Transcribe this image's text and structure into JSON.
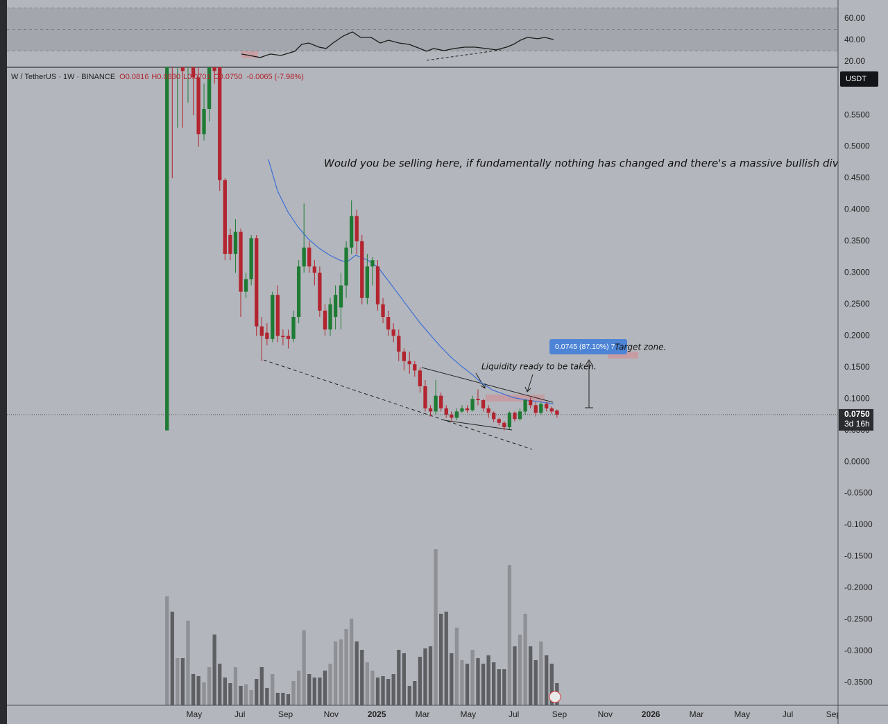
{
  "header": {
    "symbol": "W / TetherUS · 1W · BINANCE",
    "ohlc": [
      "O0.0816",
      "H0.0830",
      "L0.0701",
      "C0.0750"
    ],
    "change": "-0.0065 (-7.98%)"
  },
  "chart_data": [
    {
      "type": "line",
      "color": "#1a1a1a",
      "x": [
        6.07,
        6.43,
        6.89,
        7.34,
        7.8,
        8.1,
        8.41,
        8.71,
        9.02,
        9.47,
        9.78,
        10.08,
        10.53,
        10.93,
        11.29,
        11.75,
        12.15,
        12.51,
        12.97,
        13.42,
        13.88,
        14.18,
        14.49,
        14.94,
        15.4,
        15.85,
        16.31,
        16.77,
        17.22,
        17.68,
        17.98,
        18.29,
        18.59,
        19.05,
        19.35,
        19.74
      ],
      "values": [
        27.1,
        25.8,
        23.9,
        27.1,
        25.8,
        27.7,
        29.7,
        36.1,
        37.4,
        33.5,
        32.3,
        37.4,
        43.9,
        47.7,
        42.6,
        42.6,
        37.4,
        40,
        37.4,
        36.1,
        32.3,
        29.7,
        32.3,
        30.3,
        32.3,
        33.5,
        33.5,
        32.3,
        31,
        33.5,
        36.1,
        40,
        42.6,
        41.3,
        42.6,
        40.6
      ],
      "xlim": [
        -4.2,
        32.2
      ],
      "ylim": [
        14.8,
        77.4
      ],
      "yticks": [
        {
          "value": 60,
          "label": "60.00"
        },
        {
          "value": 40,
          "label": "40.00"
        },
        {
          "value": 20,
          "label": "20.00"
        }
      ],
      "levels": [
        30,
        50,
        70
      ]
    },
    {
      "type": "candlestick",
      "axis_unit": "USDT",
      "x": [
        2.81,
        3.04,
        3.27,
        3.5,
        3.73,
        3.96,
        4.19,
        4.43,
        4.66,
        4.89,
        5.12,
        5.35,
        5.58,
        5.81,
        6.04,
        6.27,
        6.5,
        6.73,
        6.96,
        7.19,
        7.43,
        7.66,
        7.89,
        8.12,
        8.35,
        8.58,
        8.81,
        9.04,
        9.27,
        9.5,
        9.73,
        9.96,
        10.19,
        10.43,
        10.66,
        10.89,
        11.12,
        11.35,
        11.58,
        11.81,
        12.04,
        12.27,
        12.5,
        12.73,
        12.96,
        13.19,
        13.43,
        13.66,
        13.89,
        14.12,
        14.35,
        14.58,
        14.81,
        15.04,
        15.27,
        15.5,
        15.73,
        15.96,
        16.19,
        16.43,
        16.66,
        16.89,
        17.12,
        17.35,
        17.58,
        17.81,
        18.04,
        18.27,
        18.5,
        18.73,
        18.96,
        19.19,
        19.43,
        19.66,
        19.89
      ],
      "open": [
        0.05,
        0.95,
        0.7,
        0.85,
        0.63,
        0.72,
        0.61,
        0.52,
        0.56,
        0.66,
        0.64,
        0.447,
        0.36,
        0.33,
        0.365,
        0.27,
        0.29,
        0.355,
        0.215,
        0.205,
        0.195,
        0.265,
        0.2,
        0.2,
        0.195,
        0.23,
        0.31,
        0.34,
        0.31,
        0.3,
        0.24,
        0.21,
        0.23,
        0.245,
        0.28,
        0.34,
        0.39,
        0.35,
        0.26,
        0.31,
        0.31,
        0.25,
        0.23,
        0.21,
        0.2,
        0.175,
        0.16,
        0.155,
        0.145,
        0.12,
        0.085,
        0.08,
        0.105,
        0.085,
        0.075,
        0.07,
        0.08,
        0.085,
        0.082,
        0.1,
        0.098,
        0.085,
        0.078,
        0.068,
        0.062,
        0.055,
        0.078,
        0.068,
        0.08,
        0.098,
        0.09,
        0.078,
        0.092,
        0.085,
        0.0816
      ],
      "high": [
        1.1,
        1.0,
        0.95,
        0.9,
        0.8,
        0.75,
        0.64,
        0.6,
        0.68,
        0.7,
        0.66,
        0.45,
        0.37,
        0.385,
        0.37,
        0.3,
        0.36,
        0.36,
        0.23,
        0.22,
        0.27,
        0.28,
        0.21,
        0.21,
        0.24,
        0.32,
        0.41,
        0.35,
        0.32,
        0.31,
        0.25,
        0.26,
        0.28,
        0.3,
        0.35,
        0.415,
        0.4,
        0.36,
        0.33,
        0.325,
        0.32,
        0.26,
        0.24,
        0.22,
        0.21,
        0.18,
        0.175,
        0.16,
        0.15,
        0.13,
        0.09,
        0.13,
        0.11,
        0.09,
        0.08,
        0.085,
        0.09,
        0.09,
        0.105,
        0.115,
        0.1,
        0.09,
        0.08,
        0.07,
        0.065,
        0.08,
        0.08,
        0.085,
        0.1,
        0.102,
        0.095,
        0.095,
        0.095,
        0.088,
        0.083
      ],
      "low": [
        0.05,
        0.45,
        0.53,
        0.53,
        0.57,
        0.55,
        0.5,
        0.51,
        0.54,
        0.6,
        0.43,
        0.32,
        0.32,
        0.3,
        0.23,
        0.26,
        0.28,
        0.2,
        0.16,
        0.185,
        0.19,
        0.19,
        0.185,
        0.18,
        0.19,
        0.22,
        0.3,
        0.3,
        0.28,
        0.23,
        0.2,
        0.2,
        0.21,
        0.21,
        0.26,
        0.33,
        0.33,
        0.25,
        0.25,
        0.28,
        0.24,
        0.22,
        0.2,
        0.19,
        0.16,
        0.145,
        0.14,
        0.135,
        0.11,
        0.08,
        0.072,
        0.075,
        0.08,
        0.07,
        0.064,
        0.066,
        0.078,
        0.078,
        0.08,
        0.09,
        0.08,
        0.07,
        0.063,
        0.058,
        0.05,
        0.052,
        0.064,
        0.065,
        0.075,
        0.085,
        0.072,
        0.075,
        0.08,
        0.076,
        0.0701
      ],
      "close": [
        1.0,
        0.75,
        0.85,
        0.62,
        0.72,
        0.61,
        0.52,
        0.56,
        0.63,
        0.62,
        0.447,
        0.33,
        0.33,
        0.365,
        0.27,
        0.29,
        0.355,
        0.215,
        0.2,
        0.195,
        0.265,
        0.2,
        0.198,
        0.195,
        0.23,
        0.31,
        0.34,
        0.31,
        0.3,
        0.24,
        0.21,
        0.25,
        0.265,
        0.28,
        0.34,
        0.39,
        0.35,
        0.26,
        0.31,
        0.32,
        0.25,
        0.23,
        0.21,
        0.2,
        0.175,
        0.16,
        0.155,
        0.145,
        0.12,
        0.085,
        0.08,
        0.105,
        0.085,
        0.075,
        0.07,
        0.08,
        0.085,
        0.082,
        0.1,
        0.098,
        0.085,
        0.078,
        0.068,
        0.062,
        0.055,
        0.078,
        0.068,
        0.08,
        0.098,
        0.09,
        0.078,
        0.092,
        0.085,
        0.08,
        0.075
      ],
      "volume": [
        157,
        135,
        68,
        68,
        122,
        45,
        42,
        33,
        55,
        102,
        60,
        40,
        32,
        55,
        28,
        30,
        22,
        38,
        55,
        25,
        45,
        18,
        18,
        16,
        35,
        50,
        108,
        45,
        40,
        40,
        50,
        60,
        92,
        95,
        110,
        125,
        92,
        80,
        62,
        50,
        40,
        42,
        38,
        45,
        80,
        75,
        28,
        35,
        70,
        82,
        85,
        225,
        132,
        135,
        75,
        112,
        65,
        60,
        80,
        68,
        60,
        72,
        62,
        52,
        52,
        202,
        85,
        102,
        132,
        85,
        65,
        92,
        72,
        60,
        32
      ],
      "volume_ylim": [
        0,
        400
      ],
      "up_color": "#1e7b34",
      "down_color": "#b2242f",
      "volume_up_color": "#8e9095",
      "volume_down_color": "#5e5f63",
      "moving_average": {
        "color": "#3c6fd6",
        "x": [
          7.25,
          7.65,
          8.1,
          8.56,
          9.02,
          9.47,
          9.93,
          10.38,
          10.69,
          11.08,
          11.6,
          12.05,
          12.51,
          12.97,
          13.42,
          13.88,
          14.33,
          14.79,
          15.25,
          15.7,
          16.16,
          16.61,
          17.07,
          17.53,
          17.98,
          18.59,
          19.2,
          19.74
        ],
        "values": [
          0.48,
          0.43,
          0.397,
          0.372,
          0.353,
          0.339,
          0.328,
          0.32,
          0.317,
          0.328,
          0.32,
          0.309,
          0.287,
          0.265,
          0.243,
          0.221,
          0.202,
          0.183,
          0.166,
          0.152,
          0.139,
          0.125,
          0.114,
          0.108,
          0.102,
          0.098,
          0.095,
          0.092
        ]
      },
      "xlim": [
        -4.2,
        32.2
      ],
      "xticks": [
        {
          "value": 4,
          "label": "May"
        },
        {
          "value": 6,
          "label": "Jul"
        },
        {
          "value": 8,
          "label": "Sep"
        },
        {
          "value": 10,
          "label": "Nov"
        },
        {
          "value": 12,
          "label": "2025"
        },
        {
          "value": 14,
          "label": "Mar"
        },
        {
          "value": 16,
          "label": "May"
        },
        {
          "value": 18,
          "label": "Jul"
        },
        {
          "value": 20,
          "label": "Sep"
        },
        {
          "value": 22,
          "label": "Nov"
        },
        {
          "value": 24,
          "label": "2026"
        },
        {
          "value": 26,
          "label": "Mar"
        },
        {
          "value": 28,
          "label": "May"
        },
        {
          "value": 30,
          "label": "Jul"
        },
        {
          "value": 32,
          "label": "Sep"
        }
      ],
      "ylim": [
        -0.386,
        0.626
      ],
      "yticks": [
        {
          "value": 0.55,
          "label": "0.5500"
        },
        {
          "value": 0.5,
          "label": "0.5000"
        },
        {
          "value": 0.45,
          "label": "0.4500"
        },
        {
          "value": 0.4,
          "label": "0.4000"
        },
        {
          "value": 0.35,
          "label": "0.3500"
        },
        {
          "value": 0.3,
          "label": "0.3000"
        },
        {
          "value": 0.25,
          "label": "0.2500"
        },
        {
          "value": 0.2,
          "label": "0.2000"
        },
        {
          "value": 0.15,
          "label": "0.1500"
        },
        {
          "value": 0.1,
          "label": "0.1000"
        },
        {
          "value": 0.05,
          "label": "0.0500"
        },
        {
          "value": 0,
          "label": "0.0000"
        },
        {
          "value": -0.05,
          "label": "-0.0500"
        },
        {
          "value": -0.1,
          "label": "-0.1000"
        },
        {
          "value": -0.15,
          "label": "-0.1500"
        },
        {
          "value": -0.2,
          "label": "-0.2000"
        },
        {
          "value": -0.25,
          "label": "-0.2500"
        },
        {
          "value": -0.3,
          "label": "-0.3000"
        },
        {
          "value": -0.35,
          "label": "-0.3500"
        }
      ],
      "last_price": {
        "value": 0.075,
        "label": "0.0750",
        "countdown": "3d 16h"
      },
      "annotations": {
        "question": "Would you be selling here, if fundamentally nothing has changed and there's a massive bullish diverge",
        "liquidity": "Liquidity ready to be taken.",
        "target": "Target zone.",
        "measure": "0.0745 (87.10%) 7"
      }
    }
  ]
}
